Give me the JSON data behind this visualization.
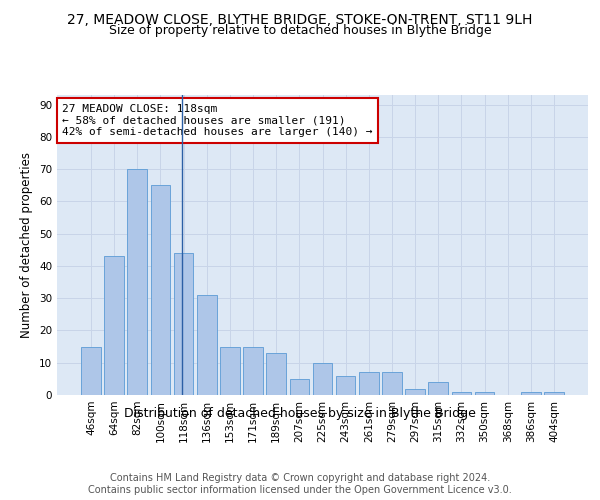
{
  "title1": "27, MEADOW CLOSE, BLYTHE BRIDGE, STOKE-ON-TRENT, ST11 9LH",
  "title2": "Size of property relative to detached houses in Blythe Bridge",
  "xlabel": "Distribution of detached houses by size in Blythe Bridge",
  "ylabel": "Number of detached properties",
  "categories": [
    "46sqm",
    "64sqm",
    "82sqm",
    "100sqm",
    "118sqm",
    "136sqm",
    "153sqm",
    "171sqm",
    "189sqm",
    "207sqm",
    "225sqm",
    "243sqm",
    "261sqm",
    "279sqm",
    "297sqm",
    "315sqm",
    "332sqm",
    "350sqm",
    "368sqm",
    "386sqm",
    "404sqm"
  ],
  "values": [
    15,
    43,
    70,
    65,
    44,
    31,
    15,
    15,
    13,
    5,
    10,
    6,
    7,
    7,
    2,
    4,
    1,
    1,
    0,
    1,
    1
  ],
  "bar_color": "#aec6e8",
  "bar_edge_color": "#5b9bd5",
  "highlight_index": 4,
  "vline_color": "#2b5fa5",
  "annotation_line1": "27 MEADOW CLOSE: 118sqm",
  "annotation_line2": "← 58% of detached houses are smaller (191)",
  "annotation_line3": "42% of semi-detached houses are larger (140) →",
  "annotation_box_color": "#ffffff",
  "annotation_box_edge_color": "#cc0000",
  "ylim": [
    0,
    93
  ],
  "yticks": [
    0,
    10,
    20,
    30,
    40,
    50,
    60,
    70,
    80,
    90
  ],
  "background_color": "#ffffff",
  "grid_color": "#c8d4e8",
  "axes_bg_color": "#dde8f5",
  "footer_text": "Contains HM Land Registry data © Crown copyright and database right 2024.\nContains public sector information licensed under the Open Government Licence v3.0.",
  "title1_fontsize": 10,
  "title2_fontsize": 9,
  "xlabel_fontsize": 9,
  "ylabel_fontsize": 8.5,
  "tick_fontsize": 7.5,
  "annotation_fontsize": 8,
  "footer_fontsize": 7
}
